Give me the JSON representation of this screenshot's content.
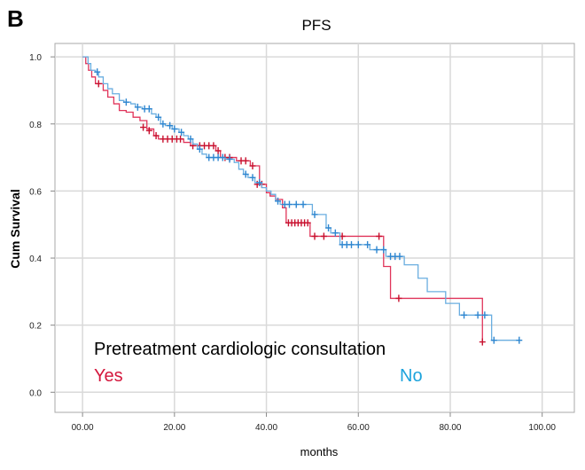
{
  "panel_label": "B",
  "chart_data": {
    "type": "line",
    "title": "PFS",
    "xlabel": "months",
    "ylabel": "Cum Survival",
    "xlim": [
      -6,
      107
    ],
    "ylim": [
      -0.06,
      1.04
    ],
    "x_ticks": [
      {
        "value": 0,
        "label": "00.00"
      },
      {
        "value": 20,
        "label": "20.00"
      },
      {
        "value": 40,
        "label": "40.00"
      },
      {
        "value": 60,
        "label": "60.00"
      },
      {
        "value": 80,
        "label": "80.00"
      },
      {
        "value": 100,
        "label": "100.00"
      }
    ],
    "y_ticks": [
      {
        "value": 0.0,
        "label": "0.0"
      },
      {
        "value": 0.2,
        "label": "0.2"
      },
      {
        "value": 0.4,
        "label": "0.4"
      },
      {
        "value": 0.6,
        "label": "0.6"
      },
      {
        "value": 0.8,
        "label": "0.8"
      },
      {
        "value": 1.0,
        "label": "1.0"
      }
    ],
    "grid": true,
    "legend": {
      "title": "Pretreatment cardiologic consultation",
      "position": "bottom-left",
      "entries": [
        {
          "name": "Yes",
          "color": "#d4163c"
        },
        {
          "name": "No",
          "color": "#1ca3dc"
        }
      ]
    },
    "series": [
      {
        "name": "Yes",
        "color": "#e0345a",
        "censor_color": "#c8102e",
        "steps": [
          [
            0,
            1.0
          ],
          [
            0.7,
            0.98
          ],
          [
            1.3,
            0.96
          ],
          [
            2.0,
            0.94
          ],
          [
            2.8,
            0.92
          ],
          [
            4.5,
            0.9
          ],
          [
            5.5,
            0.88
          ],
          [
            6.8,
            0.86
          ],
          [
            8.0,
            0.84
          ],
          [
            9.5,
            0.835
          ],
          [
            11.0,
            0.82
          ],
          [
            12.5,
            0.81
          ],
          [
            14.0,
            0.785
          ],
          [
            15.5,
            0.765
          ],
          [
            16.5,
            0.755
          ],
          [
            22.0,
            0.745
          ],
          [
            23.5,
            0.735
          ],
          [
            29.0,
            0.72
          ],
          [
            30.0,
            0.7
          ],
          [
            33.5,
            0.69
          ],
          [
            36.5,
            0.675
          ],
          [
            38.5,
            0.62
          ],
          [
            40.0,
            0.595
          ],
          [
            40.8,
            0.585
          ],
          [
            42.0,
            0.575
          ],
          [
            43.5,
            0.55
          ],
          [
            44.3,
            0.505
          ],
          [
            49.5,
            0.465
          ],
          [
            55.5,
            0.465
          ],
          [
            65.5,
            0.375
          ],
          [
            67.0,
            0.28
          ],
          [
            87.0,
            0.15
          ]
        ],
        "end_x": 87.0,
        "censored": [
          [
            3.5,
            0.92
          ],
          [
            13.2,
            0.79
          ],
          [
            14.5,
            0.78
          ],
          [
            16.0,
            0.765
          ],
          [
            17.5,
            0.755
          ],
          [
            18.5,
            0.755
          ],
          [
            19.5,
            0.755
          ],
          [
            20.5,
            0.755
          ],
          [
            21.3,
            0.755
          ],
          [
            24.0,
            0.735
          ],
          [
            25.5,
            0.735
          ],
          [
            26.5,
            0.735
          ],
          [
            27.5,
            0.735
          ],
          [
            28.5,
            0.735
          ],
          [
            29.5,
            0.72
          ],
          [
            31.0,
            0.7
          ],
          [
            32.0,
            0.7
          ],
          [
            34.5,
            0.69
          ],
          [
            35.5,
            0.69
          ],
          [
            37.0,
            0.675
          ],
          [
            38.0,
            0.62
          ],
          [
            39.0,
            0.62
          ],
          [
            44.8,
            0.505
          ],
          [
            45.5,
            0.505
          ],
          [
            46.2,
            0.505
          ],
          [
            46.9,
            0.505
          ],
          [
            47.6,
            0.505
          ],
          [
            48.3,
            0.505
          ],
          [
            49.0,
            0.505
          ],
          [
            50.5,
            0.465
          ],
          [
            52.5,
            0.465
          ],
          [
            56.5,
            0.465
          ],
          [
            64.5,
            0.465
          ],
          [
            68.8,
            0.28
          ],
          [
            87.0,
            0.15
          ]
        ]
      },
      {
        "name": "No",
        "color": "#6aaee0",
        "censor_color": "#2e86d0",
        "steps": [
          [
            0,
            1.0
          ],
          [
            1.2,
            0.98
          ],
          [
            1.8,
            0.96
          ],
          [
            2.8,
            0.955
          ],
          [
            3.5,
            0.94
          ],
          [
            4.5,
            0.92
          ],
          [
            5.5,
            0.905
          ],
          [
            6.5,
            0.89
          ],
          [
            8.0,
            0.87
          ],
          [
            9.0,
            0.865
          ],
          [
            10.5,
            0.86
          ],
          [
            11.5,
            0.85
          ],
          [
            13.0,
            0.845
          ],
          [
            15.0,
            0.83
          ],
          [
            16.0,
            0.82
          ],
          [
            17.0,
            0.8
          ],
          [
            18.0,
            0.795
          ],
          [
            19.5,
            0.785
          ],
          [
            21.0,
            0.775
          ],
          [
            22.0,
            0.765
          ],
          [
            23.0,
            0.755
          ],
          [
            24.0,
            0.74
          ],
          [
            25.0,
            0.725
          ],
          [
            26.0,
            0.71
          ],
          [
            27.0,
            0.7
          ],
          [
            31.0,
            0.695
          ],
          [
            33.0,
            0.685
          ],
          [
            34.0,
            0.665
          ],
          [
            35.0,
            0.65
          ],
          [
            36.0,
            0.64
          ],
          [
            37.5,
            0.625
          ],
          [
            39.0,
            0.61
          ],
          [
            40.0,
            0.6
          ],
          [
            41.0,
            0.59
          ],
          [
            42.0,
            0.57
          ],
          [
            43.0,
            0.56
          ],
          [
            50.0,
            0.53
          ],
          [
            53.0,
            0.49
          ],
          [
            54.0,
            0.475
          ],
          [
            56.0,
            0.44
          ],
          [
            62.5,
            0.425
          ],
          [
            66.0,
            0.405
          ],
          [
            70.0,
            0.38
          ],
          [
            73.0,
            0.34
          ],
          [
            75.0,
            0.3
          ],
          [
            79.0,
            0.265
          ],
          [
            82.0,
            0.23
          ],
          [
            89.0,
            0.155
          ]
        ],
        "end_x": 95.0,
        "censored": [
          [
            3.2,
            0.955
          ],
          [
            9.5,
            0.865
          ],
          [
            12.0,
            0.85
          ],
          [
            13.5,
            0.845
          ],
          [
            14.5,
            0.845
          ],
          [
            16.5,
            0.82
          ],
          [
            17.5,
            0.8
          ],
          [
            19.0,
            0.795
          ],
          [
            20.0,
            0.785
          ],
          [
            21.5,
            0.775
          ],
          [
            23.5,
            0.755
          ],
          [
            25.5,
            0.725
          ],
          [
            27.5,
            0.7
          ],
          [
            28.5,
            0.7
          ],
          [
            29.5,
            0.7
          ],
          [
            30.5,
            0.7
          ],
          [
            32.0,
            0.695
          ],
          [
            35.5,
            0.65
          ],
          [
            37.0,
            0.64
          ],
          [
            38.5,
            0.625
          ],
          [
            42.5,
            0.57
          ],
          [
            44.0,
            0.56
          ],
          [
            45.0,
            0.56
          ],
          [
            46.5,
            0.56
          ],
          [
            48.0,
            0.56
          ],
          [
            50.5,
            0.53
          ],
          [
            53.5,
            0.49
          ],
          [
            55.0,
            0.475
          ],
          [
            56.5,
            0.44
          ],
          [
            57.5,
            0.44
          ],
          [
            58.5,
            0.44
          ],
          [
            60.0,
            0.44
          ],
          [
            62.0,
            0.44
          ],
          [
            64.0,
            0.425
          ],
          [
            65.5,
            0.425
          ],
          [
            67.0,
            0.405
          ],
          [
            68.0,
            0.405
          ],
          [
            69.0,
            0.405
          ],
          [
            83.0,
            0.23
          ],
          [
            86.0,
            0.23
          ],
          [
            87.5,
            0.23
          ],
          [
            89.5,
            0.155
          ],
          [
            95.0,
            0.155
          ]
        ]
      }
    ]
  }
}
